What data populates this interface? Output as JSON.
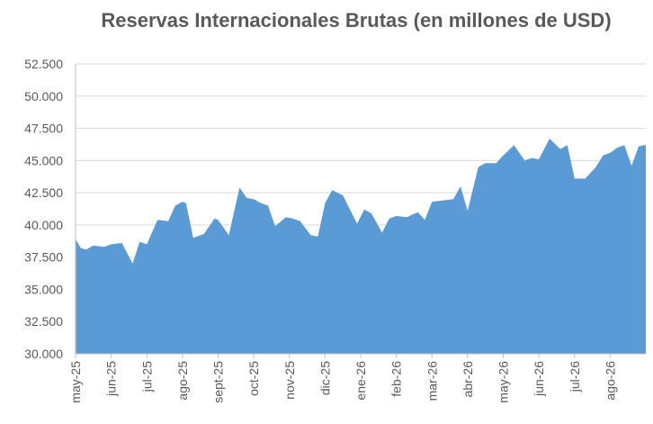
{
  "chart_data": {
    "type": "area",
    "title": "Reservas Internacionales Brutas (en millones de USD)",
    "xlabel": "",
    "ylabel": "",
    "ylim": [
      30000,
      52500
    ],
    "y_ticks": [
      30000,
      32500,
      35000,
      37500,
      40000,
      42500,
      45000,
      47500,
      50000,
      52500
    ],
    "y_tick_labels": [
      "30.000",
      "32.500",
      "35.000",
      "37.500",
      "40.000",
      "42.500",
      "45.000",
      "47.500",
      "50.000",
      "52.500"
    ],
    "x_tick_labels": [
      "may-25",
      "jun-25",
      "jul-25",
      "ago-25",
      "sept-25",
      "oct-25",
      "nov-25",
      "dic-25",
      "ene-26",
      "feb-26",
      "mar-26",
      "abr-26",
      "may-26",
      "jun-26",
      "jul-26",
      "ago-26"
    ],
    "grid": true,
    "legend": "none",
    "color": "#5B9BD5",
    "x": [
      0.0,
      0.15,
      0.3,
      0.5,
      0.8,
      1.0,
      1.3,
      1.6,
      1.8,
      2.0,
      2.3,
      2.6,
      2.8,
      3.0,
      3.1,
      3.3,
      3.6,
      3.9,
      4.0,
      4.3,
      4.6,
      4.8,
      5.0,
      5.2,
      5.4,
      5.6,
      5.9,
      6.1,
      6.3,
      6.6,
      6.8,
      7.0,
      7.2,
      7.5,
      7.7,
      7.9,
      8.1,
      8.3,
      8.6,
      8.8,
      9.0,
      9.3,
      9.6,
      9.8,
      10.0,
      10.3,
      10.6,
      10.8,
      11.0,
      11.3,
      11.5,
      11.8,
      12.0,
      12.3,
      12.6,
      12.8,
      13.0,
      13.3,
      13.6,
      13.8,
      14.0,
      14.3,
      14.6,
      14.8,
      15.0,
      15.2,
      15.4,
      15.6,
      15.8,
      15.95
    ],
    "values": [
      38900,
      38200,
      38100,
      38400,
      38300,
      38500,
      38600,
      37000,
      38700,
      38500,
      40400,
      40300,
      41500,
      41800,
      41700,
      39000,
      39300,
      40500,
      40400,
      39200,
      42900,
      42100,
      42000,
      41700,
      41500,
      39900,
      40600,
      40500,
      40300,
      39200,
      39100,
      41700,
      42700,
      42300,
      41200,
      40100,
      41200,
      40900,
      39400,
      40500,
      40700,
      40600,
      41000,
      40400,
      41800,
      41900,
      42000,
      43000,
      41100,
      44500,
      44800,
      44800,
      45400,
      46200,
      45000,
      45200,
      45100,
      46700,
      45900,
      46200,
      43600,
      43600,
      44500,
      45400,
      45600,
      46000,
      46200,
      44600,
      46100,
      46200
    ]
  }
}
